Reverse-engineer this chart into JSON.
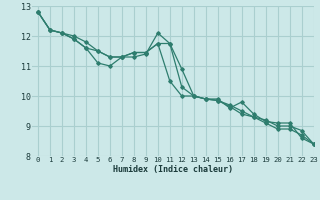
{
  "xlabel": "Humidex (Indice chaleur)",
  "bg_color": "#cce8e8",
  "grid_color": "#aacfcf",
  "line_color": "#2e7d6e",
  "xlim": [
    -0.5,
    23
  ],
  "ylim": [
    8,
    13
  ],
  "yticks": [
    8,
    9,
    10,
    11,
    12,
    13
  ],
  "xticks": [
    0,
    1,
    2,
    3,
    4,
    5,
    6,
    7,
    8,
    9,
    10,
    11,
    12,
    13,
    14,
    15,
    16,
    17,
    18,
    19,
    20,
    21,
    22,
    23
  ],
  "series": [
    [
      12.8,
      12.2,
      12.1,
      11.9,
      11.6,
      11.1,
      11.0,
      11.3,
      11.3,
      11.4,
      12.1,
      11.75,
      10.9,
      10.0,
      9.9,
      9.9,
      9.6,
      9.8,
      9.4,
      9.15,
      9.1,
      9.1,
      8.6,
      8.4
    ],
    [
      12.8,
      12.2,
      12.1,
      11.9,
      11.6,
      11.5,
      11.3,
      11.3,
      11.45,
      11.45,
      11.75,
      10.5,
      10.0,
      10.0,
      9.9,
      9.85,
      9.7,
      9.5,
      9.3,
      9.2,
      9.0,
      9.0,
      8.85,
      8.4
    ],
    [
      12.8,
      12.2,
      12.1,
      12.0,
      11.8,
      11.5,
      11.3,
      11.3,
      11.45,
      11.45,
      11.75,
      11.75,
      10.3,
      10.0,
      9.9,
      9.85,
      9.65,
      9.4,
      9.3,
      9.1,
      8.9,
      8.9,
      8.7,
      8.4
    ]
  ]
}
